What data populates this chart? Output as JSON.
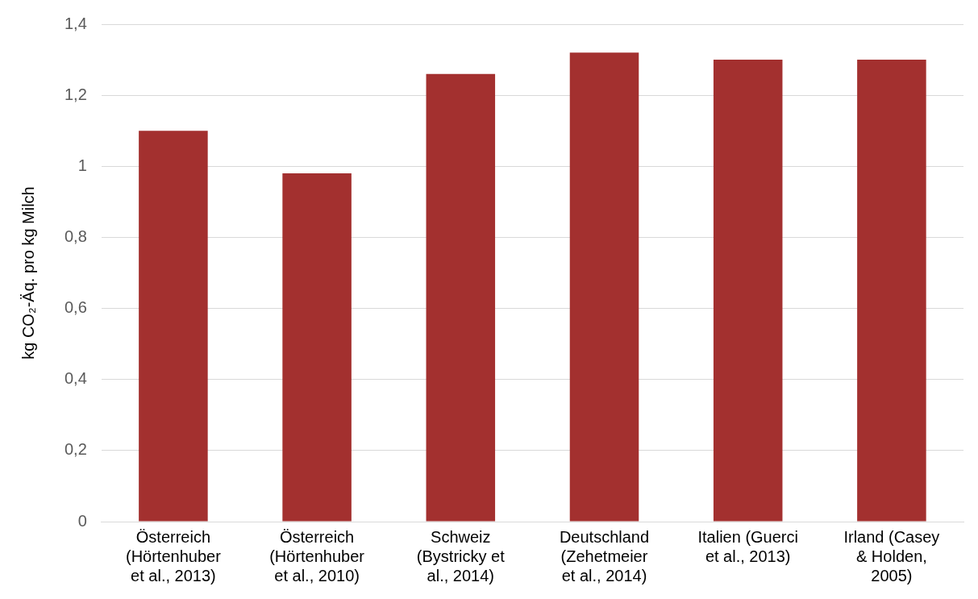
{
  "chart_data": {
    "type": "bar",
    "ylabel": "kg CO₂-Äq. pro kg Milch",
    "categories": [
      "Österreich (Hörtenhuber et al., 2013)",
      "Österreich (Hörtenhuber et al., 2010)",
      "Schweiz (Bystricky et al., 2014)",
      "Deutschland (Zehetmeier et al., 2014)",
      "Italien (Guerci et al., 2013)",
      "Irland (Casey & Holden, 2005)"
    ],
    "values": [
      1.1,
      0.98,
      1.26,
      1.32,
      1.3,
      1.3
    ],
    "color": "#a3302f",
    "ylim": [
      0,
      1.4
    ],
    "yticks": [
      {
        "value": 0,
        "label": "0"
      },
      {
        "value": 0.2,
        "label": "0,2"
      },
      {
        "value": 0.4,
        "label": "0,4"
      },
      {
        "value": 0.6,
        "label": "0,6"
      },
      {
        "value": 0.8,
        "label": "0,8"
      },
      {
        "value": 1,
        "label": "1"
      },
      {
        "value": 1.2,
        "label": "1,2"
      },
      {
        "value": 1.4,
        "label": "1,4"
      }
    ],
    "grid": "y"
  }
}
